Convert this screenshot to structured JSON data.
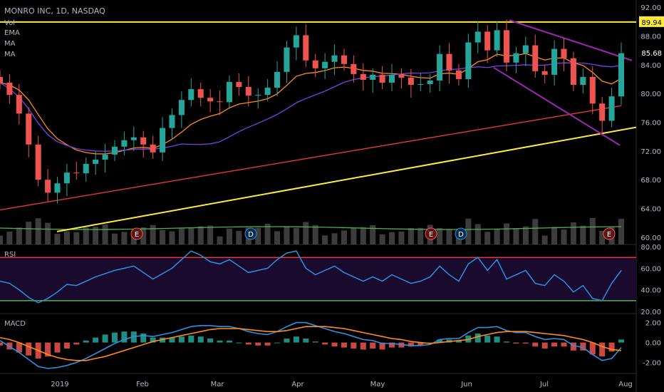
{
  "header": {
    "symbol": "MONRO INC, 1D, NASDAQ",
    "indicators": [
      "Vol",
      "EMA",
      "MA",
      "MA"
    ]
  },
  "colors": {
    "up": "#26a69a",
    "down": "#ef5350",
    "ema": "#ff8c1a",
    "ma_fast": "#7b3fe4",
    "ma_slow": "#e53935",
    "trend": "#ffeb3b",
    "resistance": "#ffeb3b",
    "channel": "#9c27b0",
    "rsi": "#2f8fe0",
    "rsi_band": "#1a0a2e",
    "macd": "#2f8fe0",
    "signal": "#ff8c1a",
    "vol_ma": "#4caf50"
  },
  "chart_data": [
    {
      "type": "candlestick",
      "title": "MONRO INC, 1D, NASDAQ",
      "x_labels": [
        "2019",
        "Feb",
        "Mar",
        "Apr",
        "May",
        "Jun",
        "Jul",
        "Aug"
      ],
      "y_ticks": [
        60.0,
        64.0,
        68.0,
        72.0,
        76.0,
        80.0,
        84.0,
        88.0,
        92.0
      ],
      "ylim": [
        59,
        93
      ],
      "price_labels": [
        {
          "value": 89.94,
          "text": "89.94",
          "color": "#ffeb3b"
        },
        {
          "value": 85.68,
          "text": "85.68",
          "color": "#000000"
        }
      ],
      "close_series_approx": [
        81.5,
        79.8,
        77.2,
        72.9,
        68.0,
        66.2,
        67.5,
        69.0,
        68.9,
        70.2,
        70.8,
        71.5,
        72.6,
        73.5,
        73.9,
        72.9,
        71.8,
        75.2,
        77.0,
        79.1,
        80.6,
        79.4,
        78.9,
        78.8,
        81.6,
        80.9,
        79.7,
        79.8,
        80.8,
        83.0,
        86.4,
        88.1,
        84.6,
        83.5,
        84.4,
        85.3,
        84.1,
        82.7,
        81.9,
        82.6,
        81.5,
        82.6,
        82.2,
        81.2,
        81.3,
        81.8,
        85.5,
        83.2,
        82.0,
        87.1,
        88.6,
        86.0,
        88.8,
        84.3,
        85.6,
        86.7,
        83.1,
        82.6,
        86.2,
        84.9,
        81.2,
        82.3,
        78.6,
        76.2,
        79.6,
        85.6
      ],
      "earnings_markers": [
        {
          "label": "E"
        },
        {
          "label": "E"
        },
        {
          "label": "E"
        }
      ],
      "dividend_markers": [
        {
          "label": "D"
        },
        {
          "label": "D"
        }
      ]
    },
    {
      "type": "line",
      "title": "RSI",
      "y_ticks": [
        20.0,
        40.0,
        60.0,
        80.0
      ],
      "ylim": [
        18,
        82
      ],
      "bands": [
        30,
        70
      ],
      "values": [
        48,
        46,
        40,
        33,
        28,
        32,
        38,
        45,
        44,
        48,
        52,
        55,
        58,
        60,
        62,
        56,
        50,
        55,
        60,
        68,
        76,
        72,
        66,
        64,
        68,
        62,
        56,
        58,
        60,
        68,
        74,
        76,
        60,
        54,
        58,
        62,
        56,
        52,
        48,
        52,
        48,
        54,
        50,
        46,
        48,
        52,
        62,
        54,
        48,
        64,
        70,
        58,
        68,
        50,
        54,
        58,
        46,
        44,
        54,
        48,
        38,
        44,
        32,
        30,
        46,
        58
      ]
    },
    {
      "type": "bar",
      "title": "MACD",
      "y_ticks": [
        -2.0,
        0.0,
        2.0
      ],
      "ylim": [
        -3.1,
        2.9
      ],
      "macd": [
        0.2,
        -0.4,
        -1.0,
        -1.7,
        -2.4,
        -2.6,
        -2.5,
        -2.3,
        -2.0,
        -1.6,
        -1.1,
        -0.6,
        -0.1,
        0.3,
        0.6,
        0.7,
        0.6,
        0.8,
        1.0,
        1.3,
        1.6,
        1.7,
        1.7,
        1.6,
        1.6,
        1.4,
        1.1,
        0.9,
        0.8,
        1.1,
        1.6,
        2.0,
        2.0,
        1.7,
        1.4,
        1.1,
        0.9,
        0.6,
        0.3,
        0.2,
        -0.1,
        -0.1,
        -0.2,
        -0.3,
        -0.3,
        -0.2,
        0.3,
        0.4,
        0.4,
        1.0,
        1.5,
        1.5,
        1.6,
        1.2,
        1.0,
        1.0,
        0.6,
        0.3,
        0.4,
        0.3,
        -0.3,
        -0.5,
        -1.2,
        -1.8,
        -1.6,
        -0.5
      ],
      "signal": [
        0.5,
        0.3,
        0.0,
        -0.4,
        -0.8,
        -1.2,
        -1.5,
        -1.7,
        -1.8,
        -1.8,
        -1.6,
        -1.4,
        -1.1,
        -0.8,
        -0.5,
        -0.2,
        0.1,
        0.3,
        0.5,
        0.7,
        0.9,
        1.1,
        1.3,
        1.4,
        1.4,
        1.4,
        1.3,
        1.2,
        1.1,
        1.1,
        1.2,
        1.4,
        1.6,
        1.6,
        1.6,
        1.5,
        1.4,
        1.2,
        1.0,
        0.8,
        0.6,
        0.4,
        0.3,
        0.1,
        0.0,
        -0.1,
        0.0,
        0.1,
        0.2,
        0.3,
        0.6,
        0.8,
        1.0,
        1.1,
        1.1,
        1.1,
        1.0,
        0.9,
        0.8,
        0.7,
        0.5,
        0.3,
        0.0,
        -0.4,
        -0.7,
        -0.8
      ]
    }
  ]
}
